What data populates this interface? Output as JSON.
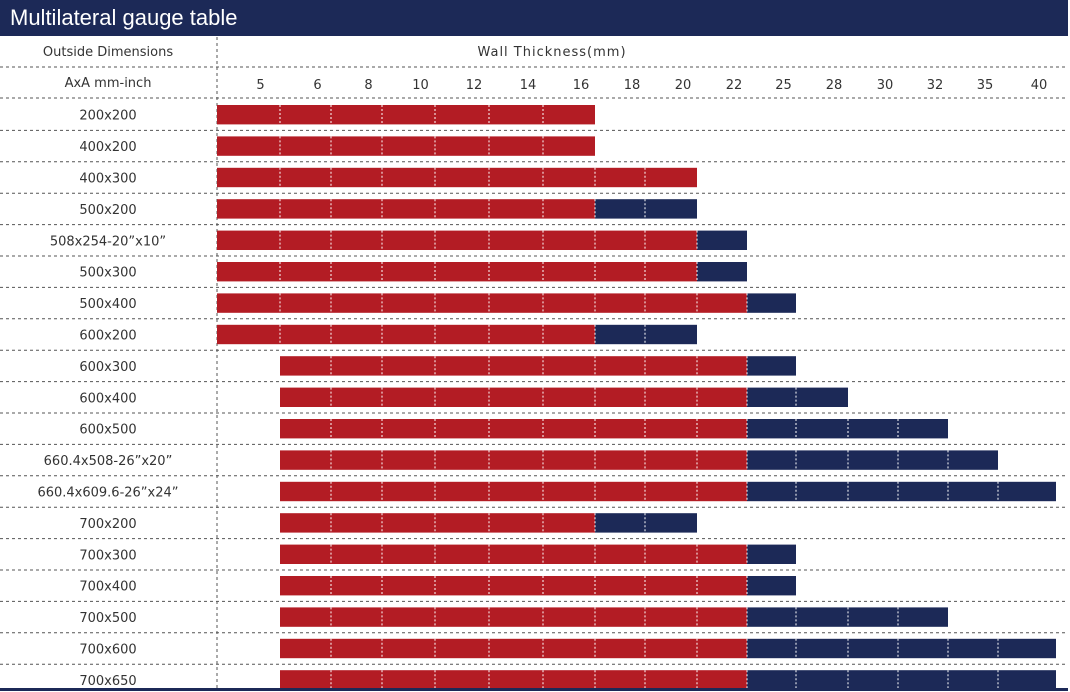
{
  "title": "Multilateral gauge table",
  "colors": {
    "header": "#1c2957",
    "red": "#b31c24",
    "navy": "#1c2957",
    "line": "#555555"
  },
  "chart_data": {
    "type": "bar",
    "orientation": "horizontal-stacked-range",
    "row_header": [
      "Outside Dimensions",
      "AxA mm-inch"
    ],
    "col_header": "Wall  Thickness(mm)",
    "thickness": [
      "5",
      "6",
      "8",
      "10",
      "12",
      "14",
      "16",
      "18",
      "20",
      "22",
      "25",
      "28",
      "30",
      "32",
      "35",
      "40"
    ],
    "legend": false,
    "series": [
      {
        "color": "#b31c24"
      },
      {
        "color": "#1c2957"
      }
    ],
    "rows": [
      {
        "label": "200x200",
        "start": "5",
        "red_end": "16",
        "navy_end": null
      },
      {
        "label": "400x200",
        "start": "5",
        "red_end": "16",
        "navy_end": null
      },
      {
        "label": "400x300",
        "start": "5",
        "red_end": "20",
        "navy_end": null
      },
      {
        "label": "500x200",
        "start": "5",
        "red_end": "16",
        "navy_end": "20"
      },
      {
        "label": "508x254-20”x10”",
        "start": "5",
        "red_end": "20",
        "navy_end": "22"
      },
      {
        "label": "500x300",
        "start": "5",
        "red_end": "20",
        "navy_end": "22"
      },
      {
        "label": "500x400",
        "start": "5",
        "red_end": "22",
        "navy_end": "25"
      },
      {
        "label": "600x200",
        "start": "5",
        "red_end": "16",
        "navy_end": "20"
      },
      {
        "label": "600x300",
        "start": "6",
        "red_end": "22",
        "navy_end": "25"
      },
      {
        "label": "600x400",
        "start": "6",
        "red_end": "22",
        "navy_end": "28"
      },
      {
        "label": "600x500",
        "start": "6",
        "red_end": "22",
        "navy_end": "32"
      },
      {
        "label": "660.4x508-26”x20”",
        "start": "6",
        "red_end": "22",
        "navy_end": "35"
      },
      {
        "label": "660.4x609.6-26”x24”",
        "start": "6",
        "red_end": "22",
        "navy_end": "40"
      },
      {
        "label": "700x200",
        "start": "6",
        "red_end": "16",
        "navy_end": "20"
      },
      {
        "label": "700x300",
        "start": "6",
        "red_end": "22",
        "navy_end": "25"
      },
      {
        "label": "700x400",
        "start": "6",
        "red_end": "22",
        "navy_end": "25"
      },
      {
        "label": "700x500",
        "start": "6",
        "red_end": "22",
        "navy_end": "32"
      },
      {
        "label": "700x600",
        "start": "6",
        "red_end": "22",
        "navy_end": "40"
      },
      {
        "label": "700x650",
        "start": "6",
        "red_end": "22",
        "navy_end": "40"
      }
    ]
  }
}
